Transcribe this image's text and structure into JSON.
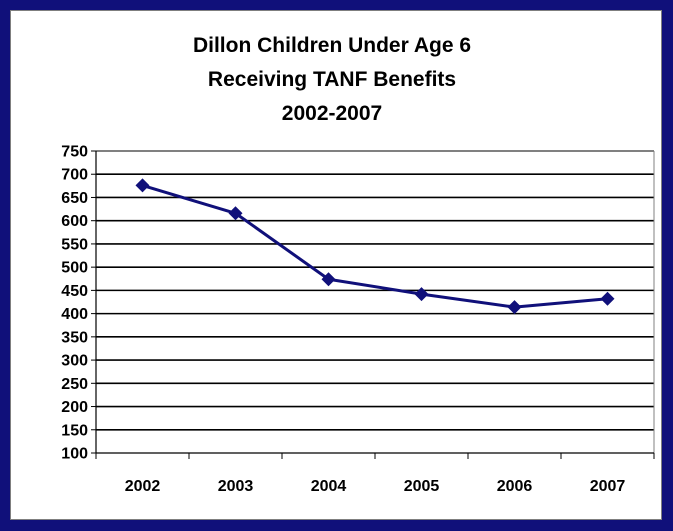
{
  "chart_data": {
    "type": "line",
    "title": [
      "Dillon Children Under Age 6",
      "Receiving TANF Benefits",
      "2002-2007"
    ],
    "xlabel": "",
    "ylabel": "",
    "categories": [
      "2002",
      "2003",
      "2004",
      "2005",
      "2006",
      "2007"
    ],
    "series": [
      {
        "values": [
          676,
          616,
          474,
          442,
          414,
          432
        ]
      }
    ],
    "ylim": [
      100,
      750
    ],
    "yticks": [
      "750",
      "700",
      "650",
      "600",
      "550",
      "500",
      "450",
      "400",
      "350",
      "300",
      "250",
      "200",
      "150",
      "100"
    ],
    "grid": true,
    "legend": "none",
    "colors": {
      "series": "#10107a",
      "border": "#10107a",
      "grid": "#000000"
    }
  }
}
